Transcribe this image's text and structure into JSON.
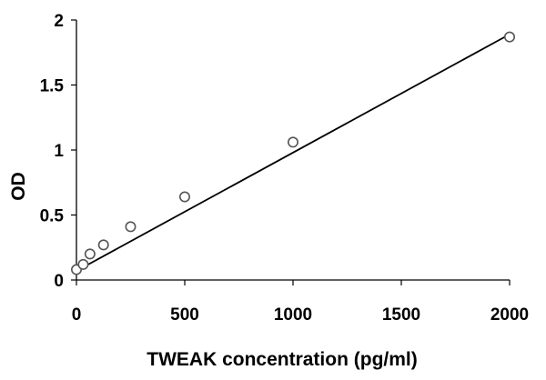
{
  "chart_data": {
    "type": "scatter",
    "title": "",
    "xlabel": "TWEAK concentration (pg/ml)",
    "ylabel": "OD",
    "xlim": [
      0,
      2000
    ],
    "ylim": [
      0,
      2
    ],
    "xticks": [
      0,
      500,
      1000,
      1500,
      2000
    ],
    "yticks": [
      0,
      0.5,
      1,
      1.5,
      2
    ],
    "xtick_labels": [
      "0",
      "500",
      "1000",
      "1500",
      "2000"
    ],
    "ytick_labels": [
      "0",
      "0.5",
      "1",
      "1.5",
      "2"
    ],
    "grid": false,
    "legend": "none",
    "series": [
      {
        "marker": "open-circle",
        "x": [
          0,
          31.25,
          62.5,
          125,
          250,
          500,
          1000,
          2000
        ],
        "y": [
          0.08,
          0.12,
          0.2,
          0.27,
          0.41,
          0.64,
          1.06,
          1.87
        ]
      }
    ],
    "trendline": {
      "type": "linear",
      "x": [
        0,
        2000
      ],
      "y": [
        0.07,
        1.89
      ]
    },
    "colors": {
      "marker_stroke": "#555555",
      "marker_fill": "#ffffff",
      "line": "#000000",
      "axis": "#000000"
    }
  }
}
